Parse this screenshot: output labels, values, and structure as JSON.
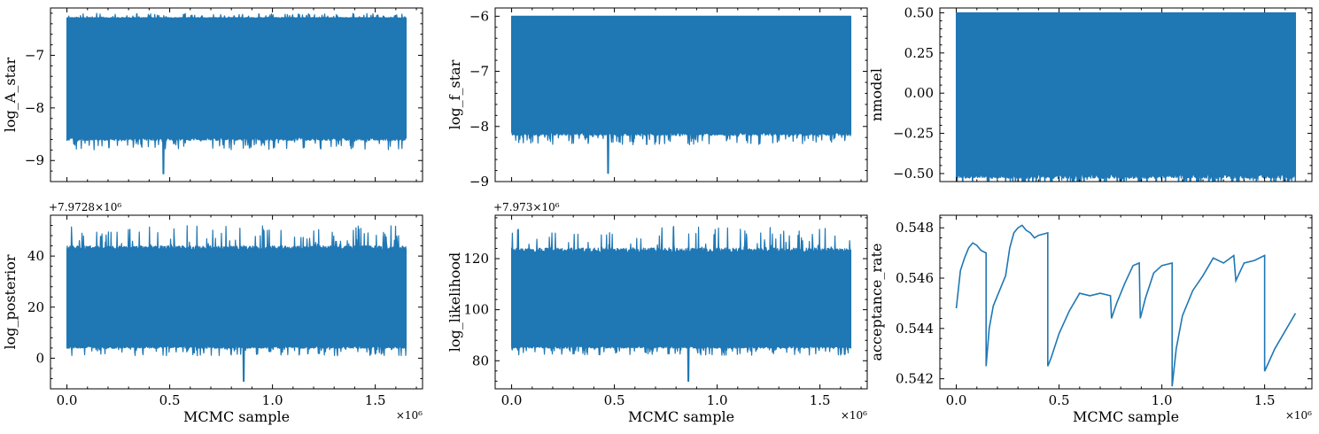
{
  "chart_data": [
    {
      "type": "line",
      "ylabel": "log_A_star",
      "xlim": [
        -0.08,
        1.73
      ],
      "ylim": [
        -9.4,
        -6.1
      ],
      "xticks": [
        0.0,
        0.5,
        1.0,
        1.5
      ],
      "yticks": [
        -9,
        -8,
        -7
      ],
      "xticklabels_visible": false,
      "series": [
        {
          "color": "#1f77b4",
          "x_range": [
            0,
            1.65
          ],
          "y_band": [
            -8.55,
            -6.3
          ],
          "dip_min": -9.25,
          "dip_at": 0.47,
          "spike_max": -6.2
        }
      ]
    },
    {
      "type": "line",
      "ylabel": "log_f_star",
      "xlim": [
        -0.08,
        1.73
      ],
      "ylim": [
        -9.0,
        -5.85
      ],
      "xticks": [
        0.0,
        0.5,
        1.0,
        1.5
      ],
      "yticks": [
        -9,
        -8,
        -7,
        -6
      ],
      "xticklabels_visible": false,
      "series": [
        {
          "color": "#1f77b4",
          "x_range": [
            0,
            1.65
          ],
          "y_band": [
            -8.1,
            -6.0
          ],
          "dip_min": -8.85,
          "dip_at": 0.47,
          "spike_max": -6.0
        }
      ]
    },
    {
      "type": "line",
      "ylabel": "nmodel",
      "xlim": [
        -0.08,
        1.73
      ],
      "ylim": [
        -0.55,
        0.53
      ],
      "xticks": [
        0.0,
        0.5,
        1.0,
        1.5
      ],
      "yticks": [
        -0.5,
        -0.25,
        0.0,
        0.25,
        0.5
      ],
      "yticklabels": [
        "−0.50",
        "−0.25",
        "0.00",
        "0.25",
        "0.50"
      ],
      "xticklabels_visible": false,
      "series": [
        {
          "color": "#1f77b4",
          "x_range": [
            0,
            1.65
          ],
          "y_band": [
            -0.5,
            0.5
          ]
        }
      ]
    },
    {
      "type": "line",
      "ylabel": "log_posterior",
      "xlabel": "MCMC sample",
      "x_offset_label": "×10⁶",
      "y_offset_label": "+7.9728×10⁶",
      "xlim": [
        -0.08,
        1.73
      ],
      "ylim": [
        -12,
        56
      ],
      "xticks": [
        0.0,
        0.5,
        1.0,
        1.5
      ],
      "yticks": [
        0,
        20,
        40
      ],
      "series": [
        {
          "color": "#1f77b4",
          "x_range": [
            0,
            1.65
          ],
          "y_band": [
            5,
            42
          ],
          "dip_min": -9,
          "dip_at": 0.86,
          "spike_max": 52
        }
      ]
    },
    {
      "type": "line",
      "ylabel": "log_likelihood",
      "xlabel": "MCMC sample",
      "x_offset_label": "×10⁶",
      "y_offset_label": "+7.973×10⁶",
      "xlim": [
        -0.08,
        1.73
      ],
      "ylim": [
        69,
        137
      ],
      "xticks": [
        0.0,
        0.5,
        1.0,
        1.5
      ],
      "yticks": [
        80,
        100,
        120
      ],
      "series": [
        {
          "color": "#1f77b4",
          "x_range": [
            0,
            1.65
          ],
          "y_band": [
            86,
            122
          ],
          "dip_min": 72,
          "dip_at": 0.86,
          "spike_max": 133
        }
      ]
    },
    {
      "type": "line",
      "ylabel": "acceptance_rate",
      "xlabel": "MCMC sample",
      "x_offset_label": "×10⁶",
      "xlim": [
        -0.08,
        1.73
      ],
      "ylim": [
        0.5416,
        0.5485
      ],
      "xticks": [
        0.0,
        0.5,
        1.0,
        1.5
      ],
      "yticks": [
        0.542,
        0.544,
        0.546,
        0.548
      ],
      "series": [
        {
          "color": "#1f77b4",
          "x": [
            0.0,
            0.02,
            0.04,
            0.06,
            0.08,
            0.1,
            0.12,
            0.145,
            0.145,
            0.16,
            0.18,
            0.2,
            0.22,
            0.24,
            0.26,
            0.28,
            0.3,
            0.32,
            0.34,
            0.36,
            0.38,
            0.4,
            0.445,
            0.445,
            0.46,
            0.5,
            0.55,
            0.6,
            0.65,
            0.7,
            0.75,
            0.755,
            0.78,
            0.82,
            0.86,
            0.89,
            0.895,
            0.92,
            0.96,
            1.0,
            1.05,
            1.05,
            1.07,
            1.1,
            1.15,
            1.2,
            1.25,
            1.3,
            1.35,
            1.36,
            1.4,
            1.45,
            1.5,
            1.5,
            1.55,
            1.6,
            1.65
          ],
          "y": [
            0.5448,
            0.5463,
            0.5468,
            0.5472,
            0.5474,
            0.5473,
            0.5471,
            0.547,
            0.5425,
            0.544,
            0.5449,
            0.5453,
            0.5457,
            0.5461,
            0.5472,
            0.5478,
            0.548,
            0.5481,
            0.5479,
            0.5478,
            0.5476,
            0.5477,
            0.5478,
            0.5425,
            0.5428,
            0.5438,
            0.5447,
            0.5454,
            0.5453,
            0.5454,
            0.5453,
            0.5444,
            0.545,
            0.5458,
            0.5465,
            0.5466,
            0.5444,
            0.5452,
            0.5462,
            0.5465,
            0.5466,
            0.5417,
            0.5432,
            0.5445,
            0.5455,
            0.5461,
            0.5468,
            0.5466,
            0.5469,
            0.5459,
            0.5466,
            0.5467,
            0.5469,
            0.5423,
            0.5432,
            0.5439,
            0.5446
          ]
        }
      ]
    }
  ]
}
